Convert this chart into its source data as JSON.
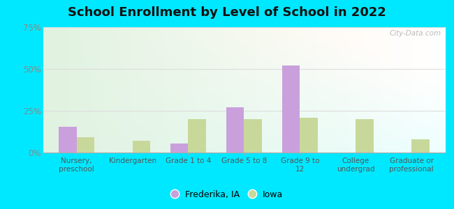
{
  "title": "School Enrollment by Level of School in 2022",
  "categories": [
    "Nursery,\npreschool",
    "Kindergarten",
    "Grade 1 to 4",
    "Grade 5 to 8",
    "Grade 9 to\n12",
    "College\nundergrad",
    "Graduate or\nprofessional"
  ],
  "frederika_values": [
    15.5,
    0,
    5.5,
    27,
    52,
    0,
    0
  ],
  "iowa_values": [
    9,
    7,
    20,
    20,
    21,
    20,
    8
  ],
  "frederika_color": "#c9a0dc",
  "iowa_color": "#c8d89a",
  "ylim": [
    0,
    75
  ],
  "yticks": [
    0,
    25,
    50,
    75
  ],
  "ytick_labels": [
    "0%",
    "25%",
    "50%",
    "75%"
  ],
  "bg_outer": "#00e8ff",
  "watermark": "City-Data.com",
  "legend_frederika": "Frederika, IA",
  "legend_iowa": "Iowa",
  "title_fontsize": 13,
  "bar_width": 0.32,
  "grid_color": "#dddddd"
}
